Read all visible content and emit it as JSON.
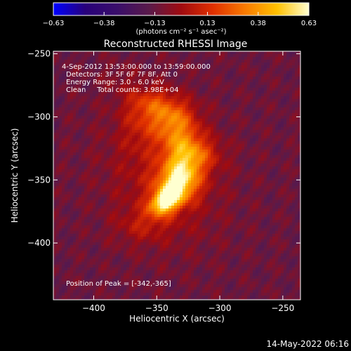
{
  "colorbar": {
    "ticks": [
      "-0.63",
      "-0.38",
      "-0.13",
      "0.13",
      "0.38",
      "0.63"
    ],
    "tick_values": [
      -0.63,
      -0.38,
      -0.13,
      0.13,
      0.38,
      0.63
    ],
    "range": [
      -0.63,
      0.63
    ],
    "unit_label": "(photons cm⁻² s⁻¹ asec⁻²)"
  },
  "plot": {
    "title": "Reconstructed RHESSI Image",
    "info_lines": [
      "4-Sep-2012 13:53:00.000 to 13:59:00.000",
      "Detectors: 3F 5F 6F 7F 8F, Att 0",
      "Energy Range: 3.0 - 6.0 keV",
      "Clean     Total counts: 3.98E+04"
    ],
    "peak_label": "Position of Peak = [-342,-365]",
    "footer_timestamp": "14-May-2022 06:16"
  },
  "chart_data": {
    "type": "heatmap",
    "title": "Reconstructed RHESSI Image",
    "xlabel": "Heliocentric X (arcsec)",
    "ylabel": "Heliocentric Y (arcsec)",
    "xlim": [
      -432,
      -236
    ],
    "ylim": [
      -445,
      -248
    ],
    "x_ticks": [
      -400,
      -350,
      -300,
      -250
    ],
    "y_ticks": [
      -250,
      -300,
      -350,
      -400
    ],
    "x_tick_labels": [
      "−400",
      "−350",
      "−300",
      "−250"
    ],
    "y_tick_labels": [
      "−250",
      "−300",
      "−350",
      "−400"
    ],
    "value_range": [
      -0.63,
      0.63
    ],
    "colormap": [
      "#0000ff",
      "#28007a",
      "#3a0e6a",
      "#5a1a4a",
      "#a00b10",
      "#e03000",
      "#f87a00",
      "#ffc000",
      "#ffffd0"
    ],
    "peak": {
      "x": -342,
      "y": -365,
      "value": 0.63
    },
    "background_level": -0.12,
    "grid": false,
    "sources": [
      {
        "x": -343,
        "y": -367,
        "sx": 9,
        "sy": 6,
        "angle": 35,
        "amp": 0.6
      },
      {
        "x": -333,
        "y": -355,
        "sx": 12,
        "sy": 10,
        "angle": 30,
        "amp": 0.38
      },
      {
        "x": -330,
        "y": -342,
        "sx": 14,
        "sy": 10,
        "angle": 50,
        "amp": 0.32
      },
      {
        "x": -330,
        "y": -322,
        "sx": 12,
        "sy": 11,
        "angle": 80,
        "amp": 0.3
      },
      {
        "x": -338,
        "y": -303,
        "sx": 13,
        "sy": 10,
        "angle": 20,
        "amp": 0.27
      },
      {
        "x": -352,
        "y": -290,
        "sx": 14,
        "sy": 9,
        "angle": -10,
        "amp": 0.24
      },
      {
        "x": -345,
        "y": -345,
        "sx": 30,
        "sy": 38,
        "angle": 20,
        "amp": 0.16
      },
      {
        "x": -312,
        "y": -330,
        "sx": 12,
        "sy": 9,
        "angle": 0,
        "amp": 0.12
      },
      {
        "x": -365,
        "y": -305,
        "sx": 10,
        "sy": 14,
        "angle": 0,
        "amp": 0.1
      },
      {
        "x": -360,
        "y": -385,
        "sx": 16,
        "sy": 10,
        "angle": 10,
        "amp": 0.12
      },
      {
        "x": -380,
        "y": -270,
        "sx": 10,
        "sy": 8,
        "angle": 0,
        "amp": 0.05
      }
    ]
  }
}
